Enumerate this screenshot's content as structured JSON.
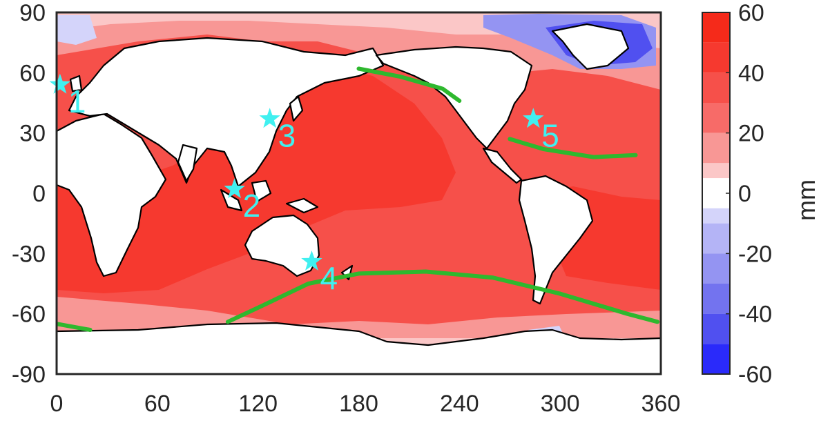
{
  "chart_data": {
    "type": "heatmap",
    "title": "",
    "xlabel": "",
    "ylabel": "",
    "xlim": [
      0,
      360
    ],
    "ylim": [
      -90,
      90
    ],
    "x_ticks": [
      "0",
      "60",
      "120",
      "180",
      "240",
      "300",
      "360"
    ],
    "y_ticks": [
      "90",
      "60",
      "30",
      "0",
      "-30",
      "-60",
      "-90"
    ],
    "colorbar": {
      "label": "mm",
      "range": [
        -60,
        60
      ],
      "ticks": [
        "60",
        "40",
        "20",
        "0",
        "-20",
        "-40",
        "-60"
      ],
      "bins": [
        {
          "from": 50,
          "to": 60,
          "color": "#f52a1a"
        },
        {
          "from": 40,
          "to": 50,
          "color": "#f6392f"
        },
        {
          "from": 30,
          "to": 40,
          "color": "#f6504a"
        },
        {
          "from": 20,
          "to": 30,
          "color": "#f76b68"
        },
        {
          "from": 10,
          "to": 20,
          "color": "#f89795"
        },
        {
          "from": 5,
          "to": 10,
          "color": "#fbc7c7"
        },
        {
          "from": -5,
          "to": 5,
          "color": "#ffffff"
        },
        {
          "from": -10,
          "to": -5,
          "color": "#d4d4fa"
        },
        {
          "from": -20,
          "to": -10,
          "color": "#b4b4f6"
        },
        {
          "from": -30,
          "to": -20,
          "color": "#9494f2"
        },
        {
          "from": -40,
          "to": -30,
          "color": "#7373ef"
        },
        {
          "from": -50,
          "to": -40,
          "color": "#5050f0"
        },
        {
          "from": -60,
          "to": -50,
          "color": "#2a2afa"
        }
      ]
    },
    "markers": [
      {
        "label": "1",
        "lon": 2,
        "lat": 54
      },
      {
        "label": "2",
        "lon": 106,
        "lat": 2
      },
      {
        "label": "3",
        "lon": 127,
        "lat": 37
      },
      {
        "label": "4",
        "lon": 152,
        "lat": -34
      },
      {
        "label": "5",
        "lon": 284,
        "lat": 37
      }
    ],
    "contours": [
      {
        "name": "",
        "color": "#2eb82e",
        "points": [
          [
            180,
            62
          ],
          [
            205,
            58
          ],
          [
            230,
            52
          ],
          [
            240,
            46
          ]
        ]
      },
      {
        "name": "",
        "color": "#2eb82e",
        "points": [
          [
            270,
            27
          ],
          [
            290,
            22
          ],
          [
            320,
            18
          ],
          [
            345,
            19
          ]
        ]
      },
      {
        "name": "",
        "color": "#2eb82e",
        "points": [
          [
            0,
            -65
          ],
          [
            20,
            -68
          ]
        ]
      },
      {
        "name": "",
        "color": "#2eb82e",
        "points": [
          [
            102,
            -64
          ],
          [
            125,
            -55
          ],
          [
            150,
            -45
          ],
          [
            180,
            -40
          ],
          [
            220,
            -39
          ],
          [
            260,
            -42
          ],
          [
            300,
            -50
          ],
          [
            340,
            -60
          ],
          [
            358,
            -64
          ]
        ]
      }
    ]
  }
}
